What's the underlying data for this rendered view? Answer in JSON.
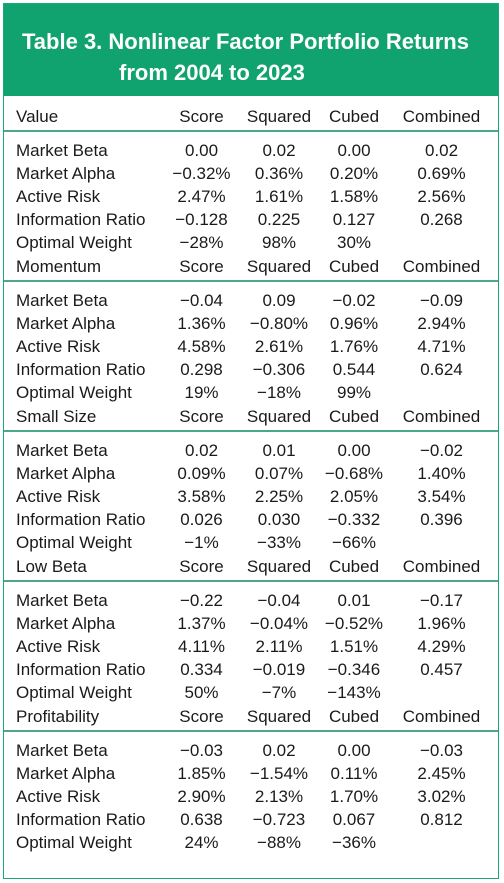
{
  "title": {
    "line1": "Table 3.  Nonlinear Factor Portfolio Returns",
    "line2": "from 2004 to 2023"
  },
  "columns": [
    "Score",
    "Squared",
    "Cubed",
    "Combined"
  ],
  "sections": [
    {
      "name": "Value",
      "rows": [
        {
          "label": "Market Beta",
          "values": [
            "0.00",
            "0.02",
            "0.00",
            "0.02"
          ]
        },
        {
          "label": "Market Alpha",
          "values": [
            "−0.32%",
            "0.36%",
            "0.20%",
            "0.69%"
          ]
        },
        {
          "label": "Active Risk",
          "values": [
            "2.47%",
            "1.61%",
            "1.58%",
            "2.56%"
          ]
        },
        {
          "label": "Information Ratio",
          "values": [
            "−0.128",
            "0.225",
            "0.127",
            "0.268"
          ]
        },
        {
          "label": "Optimal Weight",
          "values": [
            "−28%",
            "98%",
            "30%",
            ""
          ]
        }
      ]
    },
    {
      "name": "Momentum",
      "rows": [
        {
          "label": "Market Beta",
          "values": [
            "−0.04",
            "0.09",
            "−0.02",
            "−0.09"
          ]
        },
        {
          "label": "Market Alpha",
          "values": [
            "1.36%",
            "−0.80%",
            "0.96%",
            "2.94%"
          ]
        },
        {
          "label": "Active Risk",
          "values": [
            "4.58%",
            "2.61%",
            "1.76%",
            "4.71%"
          ]
        },
        {
          "label": "Information Ratio",
          "values": [
            "0.298",
            "−0.306",
            "0.544",
            "0.624"
          ]
        },
        {
          "label": "Optimal Weight",
          "values": [
            "19%",
            "−18%",
            "99%",
            ""
          ]
        }
      ]
    },
    {
      "name": "Small Size",
      "rows": [
        {
          "label": "Market Beta",
          "values": [
            "0.02",
            "0.01",
            "0.00",
            "−0.02"
          ]
        },
        {
          "label": "Market Alpha",
          "values": [
            "0.09%",
            "0.07%",
            "−0.68%",
            "1.40%"
          ]
        },
        {
          "label": "Active Risk",
          "values": [
            "3.58%",
            "2.25%",
            "2.05%",
            "3.54%"
          ]
        },
        {
          "label": "Information Ratio",
          "values": [
            "0.026",
            "0.030",
            "−0.332",
            "0.396"
          ]
        },
        {
          "label": "Optimal Weight",
          "values": [
            "−1%",
            "−33%",
            "−66%",
            ""
          ]
        }
      ]
    },
    {
      "name": "Low Beta",
      "rows": [
        {
          "label": "Market Beta",
          "values": [
            "−0.22",
            "−0.04",
            "0.01",
            "−0.17"
          ]
        },
        {
          "label": "Market Alpha",
          "values": [
            "1.37%",
            "−0.04%",
            "−0.52%",
            "1.96%"
          ]
        },
        {
          "label": "Active Risk",
          "values": [
            "4.11%",
            "2.11%",
            "1.51%",
            "4.29%"
          ]
        },
        {
          "label": "Information Ratio",
          "values": [
            "0.334",
            "−0.019",
            "−0.346",
            "0.457"
          ]
        },
        {
          "label": "Optimal Weight",
          "values": [
            "50%",
            "−7%",
            "−143%",
            ""
          ]
        }
      ]
    },
    {
      "name": "Profitability",
      "rows": [
        {
          "label": "Market Beta",
          "values": [
            "−0.03",
            "0.02",
            "0.00",
            "−0.03"
          ]
        },
        {
          "label": "Market Alpha",
          "values": [
            "1.85%",
            "−1.54%",
            "0.11%",
            "2.45%"
          ]
        },
        {
          "label": "Active Risk",
          "values": [
            "2.90%",
            "2.13%",
            "1.70%",
            "3.02%"
          ]
        },
        {
          "label": "Information Ratio",
          "values": [
            "0.638",
            "−0.723",
            "0.067",
            "0.812"
          ]
        },
        {
          "label": "Optimal Weight",
          "values": [
            "24%",
            "−88%",
            "−36%",
            ""
          ]
        }
      ]
    }
  ],
  "colors": {
    "title_background": "#11a36f",
    "title_text": "#ffffff",
    "divider": "#4aa98a"
  }
}
